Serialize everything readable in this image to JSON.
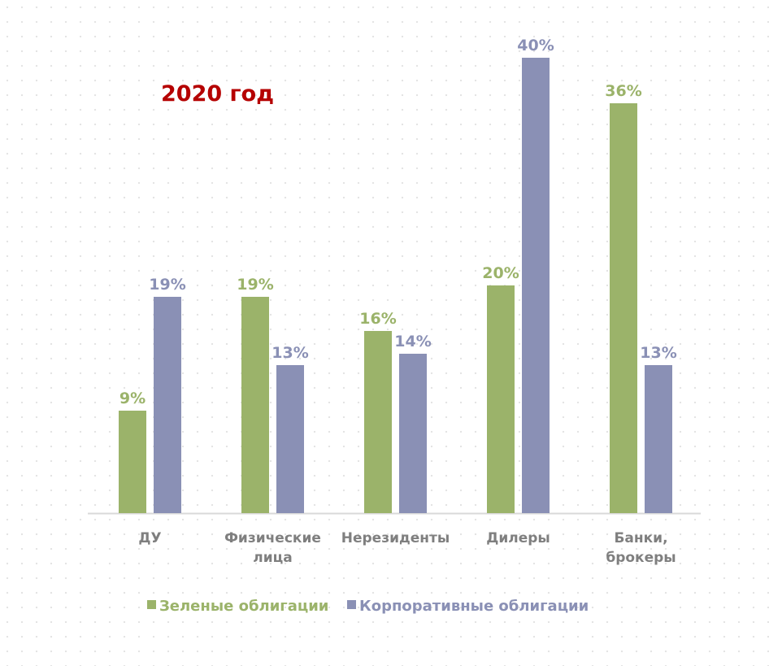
{
  "chart_data": {
    "type": "bar",
    "title": "2020 год",
    "categories": [
      [
        "ДУ"
      ],
      [
        "Физические",
        "лица"
      ],
      [
        "Нерезиденты"
      ],
      [
        "Дилеры"
      ],
      [
        "Банки,",
        "брокеры"
      ]
    ],
    "series": [
      {
        "name": "Зеленые облигации",
        "values": [
          9,
          19,
          16,
          20,
          36
        ],
        "labels": [
          "9%",
          "19%",
          "16%",
          "20%",
          "36%"
        ],
        "color": "#9bb36a"
      },
      {
        "name": "Корпоративные облигации",
        "values": [
          19,
          13,
          14,
          40,
          13
        ],
        "labels": [
          "19%",
          "13%",
          "14%",
          "40%",
          "13%"
        ],
        "color": "#8a90b5"
      }
    ],
    "ylim": [
      0,
      40
    ],
    "grid": false,
    "legend": "bottom",
    "colors": {
      "title": "#b50000",
      "axis": "#d9d9d9",
      "category_text": "#7f7f7f"
    }
  }
}
